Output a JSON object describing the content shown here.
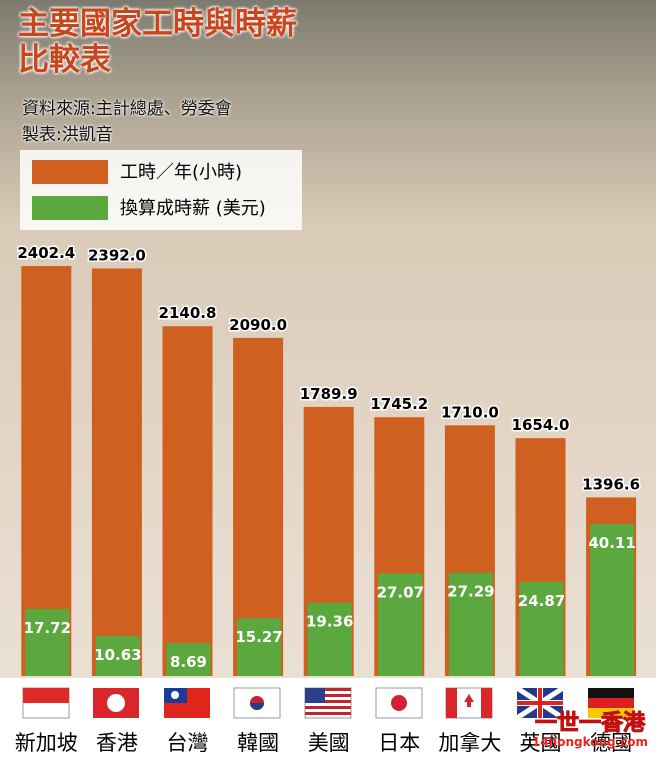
{
  "chart_data": {
    "type": "bar",
    "title": "主要國家工時與時薪比較表",
    "source": "資料來源:主計總處、勞委會",
    "maker": "製表:洪凱音",
    "watermark": "一世一香港",
    "watermark_url": "14hongkong.com",
    "categories": [
      "新加坡",
      "香港",
      "台灣",
      "韓國",
      "美國",
      "日本",
      "加拿大",
      "英國",
      "德國"
    ],
    "ylim": [
      620,
      2420
    ],
    "y2lim": [
      0,
      42
    ],
    "series": [
      {
        "name": "工時／年(小時)",
        "color": "#d0601f",
        "values": [
          2402.4,
          2392.0,
          2140.8,
          2090.0,
          1789.9,
          1745.2,
          1710.0,
          1654.0,
          1396.6
        ],
        "value_labels": [
          "2402.4",
          "2392.0",
          "2140.8",
          "2090.0",
          "1789.9",
          "1745.2",
          "1710.0",
          "1654.0",
          "1396.6"
        ]
      },
      {
        "name": "換算成時薪 (美元)",
        "color": "#5aa83e",
        "axis": "y2",
        "values": [
          17.72,
          10.63,
          8.69,
          15.27,
          19.36,
          27.07,
          27.29,
          24.87,
          40.11
        ],
        "value_labels": [
          "17.72",
          "10.63",
          "8.69",
          "15.27",
          "19.36",
          "27.07",
          "27.29",
          "24.87",
          "40.11"
        ]
      }
    ]
  }
}
